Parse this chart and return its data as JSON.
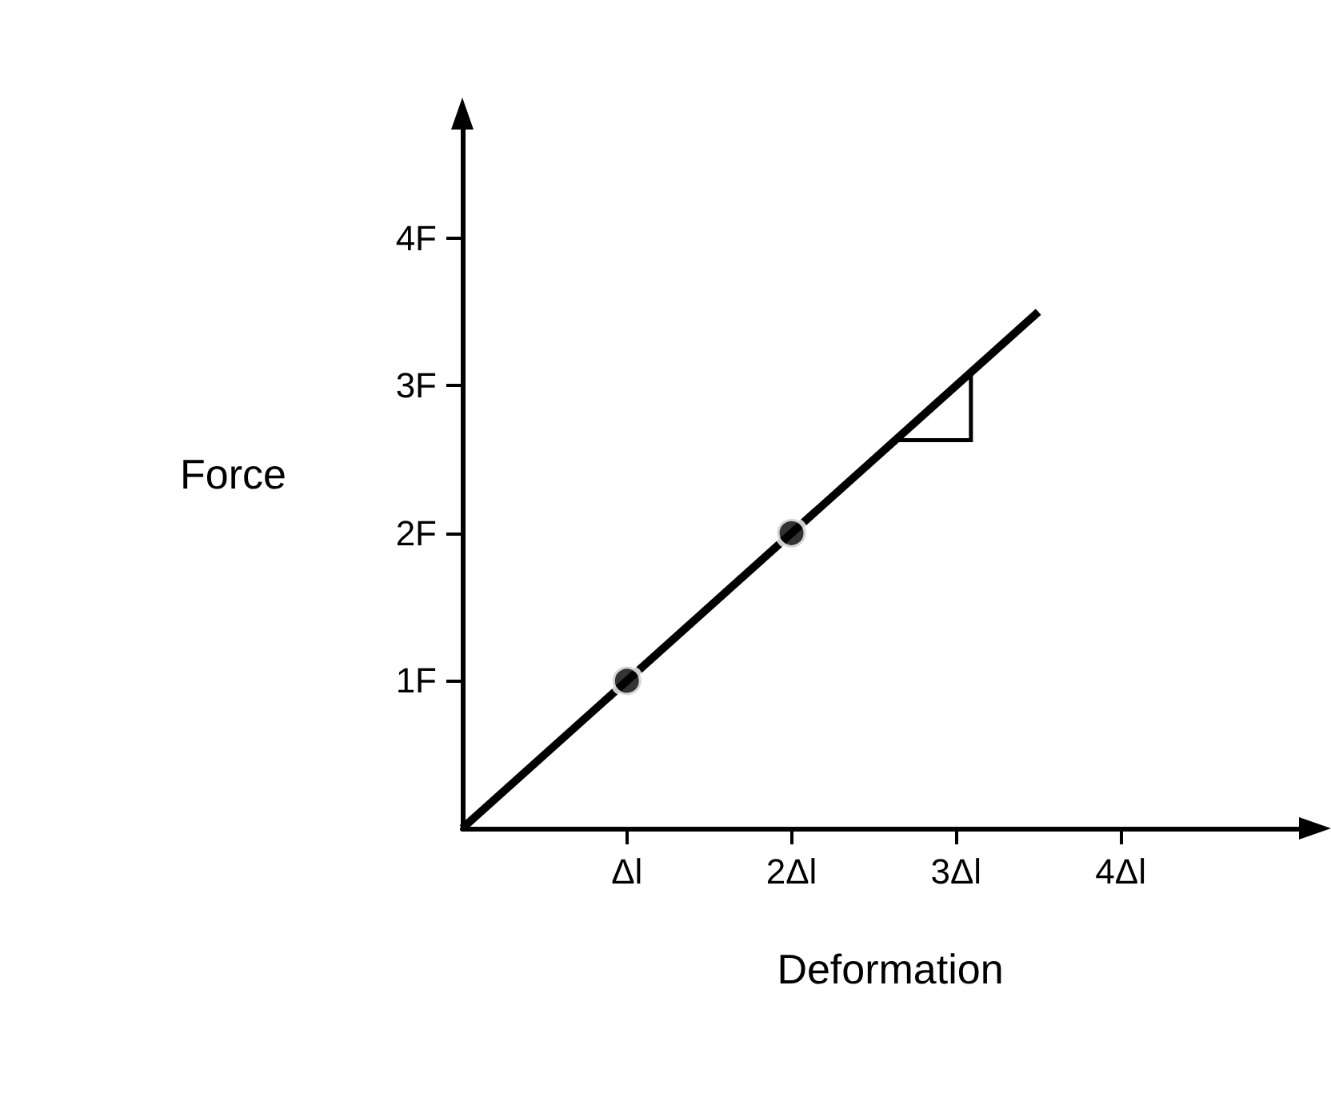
{
  "chart_data": {
    "type": "line",
    "xlabel": "Deformation",
    "ylabel": "Force",
    "xlim": [
      0,
      5.2
    ],
    "ylim": [
      0,
      4.8
    ],
    "xticks": [
      {
        "value": 1,
        "label": "Δl"
      },
      {
        "value": 2,
        "label": "2Δl"
      },
      {
        "value": 3,
        "label": "3Δl"
      },
      {
        "value": 4,
        "label": "4Δl"
      }
    ],
    "yticks": [
      {
        "value": 1,
        "label": "1F"
      },
      {
        "value": 2,
        "label": "2F"
      },
      {
        "value": 3,
        "label": "3F"
      },
      {
        "value": 4,
        "label": "4F"
      }
    ],
    "grid": false,
    "series": [
      {
        "color": "#000000",
        "x": [
          0,
          3.5
        ],
        "values": [
          0,
          3.5
        ],
        "marker": "none"
      },
      {
        "type": "scatter",
        "color": "#000000",
        "x": [
          1,
          2
        ],
        "values": [
          1,
          2
        ],
        "marker": "circle"
      }
    ]
  }
}
